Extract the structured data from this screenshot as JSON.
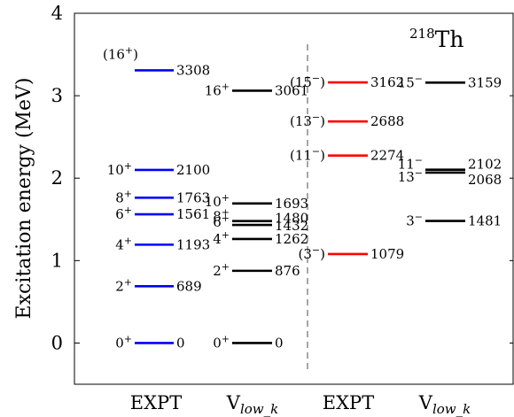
{
  "chart_data": {
    "type": "level-scheme",
    "nucleus": {
      "mass": "218",
      "symbol": "Th"
    },
    "ylabel": "Excitation energy (MeV)",
    "ylim": [
      -0.5,
      4
    ],
    "yticks": [
      0,
      1,
      2,
      3,
      4
    ],
    "grid": false,
    "colors": {
      "expt_positive": "#0000ff",
      "expt_negative": "#ff0000",
      "theory": "#000000",
      "separator": "#777777"
    },
    "columns": [
      {
        "label": "EXPT",
        "label_sub": "",
        "color": "#0000ff",
        "levels": [
          {
            "spin": "0",
            "parity": "+",
            "tentative": false,
            "energy_keV": 0,
            "value_label": "0"
          },
          {
            "spin": "2",
            "parity": "+",
            "tentative": false,
            "energy_keV": 689,
            "value_label": "689"
          },
          {
            "spin": "4",
            "parity": "+",
            "tentative": false,
            "energy_keV": 1193,
            "value_label": "1193"
          },
          {
            "spin": "6",
            "parity": "+",
            "tentative": false,
            "energy_keV": 1561,
            "value_label": "1561"
          },
          {
            "spin": "8",
            "parity": "+",
            "tentative": false,
            "energy_keV": 1763,
            "value_label": "1763"
          },
          {
            "spin": "10",
            "parity": "+",
            "tentative": false,
            "energy_keV": 2100,
            "value_label": "2100"
          },
          {
            "spin": "16",
            "parity": "+",
            "tentative": true,
            "energy_keV": 3308,
            "value_label": "3308"
          }
        ]
      },
      {
        "label": "V",
        "label_sub": "low_k",
        "color": "#000000",
        "levels": [
          {
            "spin": "0",
            "parity": "+",
            "tentative": false,
            "energy_keV": 0,
            "value_label": "0"
          },
          {
            "spin": "2",
            "parity": "+",
            "tentative": false,
            "energy_keV": 876,
            "value_label": "876"
          },
          {
            "spin": "4",
            "parity": "+",
            "tentative": false,
            "energy_keV": 1262,
            "value_label": "1262"
          },
          {
            "spin": "6",
            "parity": "+",
            "tentative": false,
            "energy_keV": 1432,
            "value_label": "1432"
          },
          {
            "spin": "8",
            "parity": "+",
            "tentative": false,
            "energy_keV": 1480,
            "value_label": "1480"
          },
          {
            "spin": "10",
            "parity": "+",
            "tentative": false,
            "energy_keV": 1693,
            "value_label": "1693"
          },
          {
            "spin": "16",
            "parity": "+",
            "tentative": false,
            "energy_keV": 3061,
            "value_label": "3061"
          }
        ]
      },
      {
        "label": "EXPT",
        "label_sub": "",
        "color": "#ff0000",
        "levels": [
          {
            "spin": "3",
            "parity": "−",
            "tentative": true,
            "energy_keV": 1079,
            "value_label": "1079"
          },
          {
            "spin": "11",
            "parity": "−",
            "tentative": true,
            "energy_keV": 2274,
            "value_label": "2274"
          },
          {
            "spin": "13",
            "parity": "−",
            "tentative": true,
            "energy_keV": 2688,
            "value_label": "2688"
          },
          {
            "spin": "15",
            "parity": "−",
            "tentative": true,
            "energy_keV": 3162,
            "value_label": "3162"
          }
        ]
      },
      {
        "label": "V",
        "label_sub": "low_k",
        "color": "#000000",
        "levels": [
          {
            "spin": "3",
            "parity": "−",
            "tentative": false,
            "energy_keV": 1481,
            "value_label": "1481"
          },
          {
            "spin": "13",
            "parity": "−",
            "tentative": false,
            "energy_keV": 2068,
            "value_label": "2068"
          },
          {
            "spin": "11",
            "parity": "−",
            "tentative": false,
            "energy_keV": 2102,
            "value_label": "2102"
          },
          {
            "spin": "15",
            "parity": "−",
            "tentative": false,
            "energy_keV": 3159,
            "value_label": "3159"
          }
        ]
      }
    ]
  }
}
